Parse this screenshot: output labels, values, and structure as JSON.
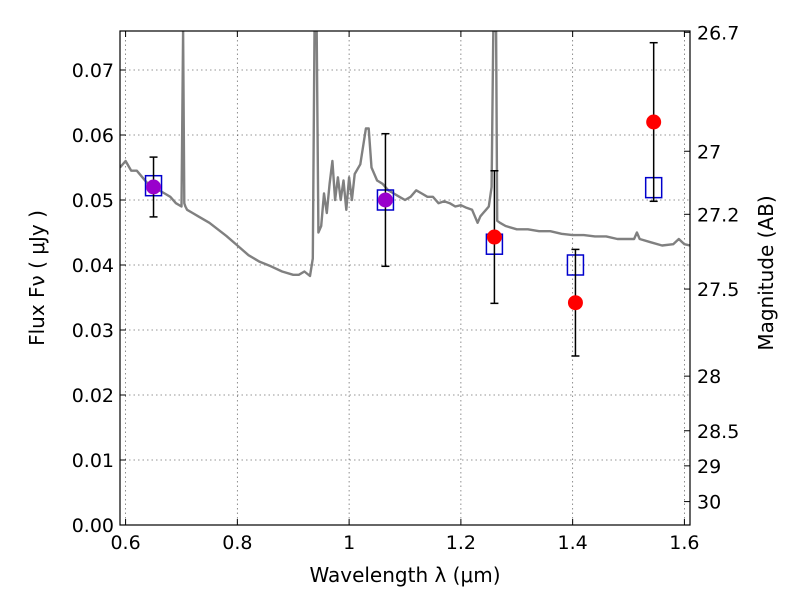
{
  "chart_data": {
    "type": "scatter",
    "title": "",
    "xlabel": "Wavelength  λ (μm)",
    "ylabel": "Flux  Fν  ( μJy )",
    "y2label": "Magnitude (AB)",
    "xlim": [
      0.59,
      1.61
    ],
    "ylim": [
      0.0,
      0.076
    ],
    "grid": true,
    "x_ticks": [
      {
        "value": 0.6,
        "label": "0.6"
      },
      {
        "value": 0.8,
        "label": "0.8"
      },
      {
        "value": 1.0,
        "label": "1"
      },
      {
        "value": 1.2,
        "label": "1.2"
      },
      {
        "value": 1.4,
        "label": "1.4"
      },
      {
        "value": 1.6,
        "label": "1.6"
      }
    ],
    "y_ticks": [
      {
        "value": 0.0,
        "label": "0.00"
      },
      {
        "value": 0.01,
        "label": "0.01"
      },
      {
        "value": 0.02,
        "label": "0.02"
      },
      {
        "value": 0.03,
        "label": "0.03"
      },
      {
        "value": 0.04,
        "label": "0.04"
      },
      {
        "value": 0.05,
        "label": "0.05"
      },
      {
        "value": 0.06,
        "label": "0.06"
      },
      {
        "value": 0.07,
        "label": "0.07"
      }
    ],
    "y2_ticks": [
      {
        "flux": 0.0758,
        "label": "26.7"
      },
      {
        "flux": 0.0575,
        "label": "27"
      },
      {
        "flux": 0.0478,
        "label": "27.2"
      },
      {
        "flux": 0.0363,
        "label": "27.5"
      },
      {
        "flux": 0.0229,
        "label": "28"
      },
      {
        "flux": 0.0145,
        "label": "28.5"
      },
      {
        "flux": 0.0091,
        "label": "29"
      },
      {
        "flux": 0.0036,
        "label": "30"
      }
    ],
    "series": [
      {
        "kind": "line",
        "color": "#808080",
        "x": [
          0.59,
          0.6,
          0.61,
          0.62,
          0.63,
          0.64,
          0.65,
          0.66,
          0.67,
          0.68,
          0.69,
          0.7,
          0.703,
          0.705,
          0.707,
          0.71,
          0.72,
          0.73,
          0.75,
          0.78,
          0.8,
          0.82,
          0.84,
          0.86,
          0.88,
          0.9,
          0.91,
          0.92,
          0.93,
          0.935,
          0.938,
          0.942,
          0.945,
          0.95,
          0.955,
          0.96,
          0.965,
          0.97,
          0.975,
          0.98,
          0.985,
          0.99,
          0.995,
          1.0,
          1.005,
          1.01,
          1.02,
          1.03,
          1.035,
          1.04,
          1.05,
          1.06,
          1.07,
          1.08,
          1.09,
          1.1,
          1.11,
          1.12,
          1.13,
          1.14,
          1.15,
          1.16,
          1.17,
          1.18,
          1.19,
          1.2,
          1.21,
          1.22,
          1.23,
          1.235,
          1.24,
          1.245,
          1.25,
          1.255,
          1.258,
          1.26,
          1.263,
          1.265,
          1.27,
          1.28,
          1.3,
          1.32,
          1.34,
          1.36,
          1.38,
          1.4,
          1.42,
          1.44,
          1.46,
          1.48,
          1.5,
          1.51,
          1.515,
          1.52,
          1.54,
          1.56,
          1.58,
          1.59,
          1.6,
          1.61
        ],
        "y": [
          0.055,
          0.056,
          0.0545,
          0.0545,
          0.0535,
          0.0525,
          0.052,
          0.0515,
          0.051,
          0.0505,
          0.0495,
          0.049,
          0.076,
          0.0495,
          0.049,
          0.0485,
          0.048,
          0.0475,
          0.0465,
          0.0445,
          0.043,
          0.0415,
          0.0405,
          0.0398,
          0.039,
          0.0385,
          0.0385,
          0.039,
          0.0383,
          0.041,
          0.076,
          0.076,
          0.045,
          0.046,
          0.051,
          0.048,
          0.0525,
          0.056,
          0.05,
          0.0535,
          0.05,
          0.053,
          0.0485,
          0.0535,
          0.05,
          0.054,
          0.0555,
          0.061,
          0.061,
          0.055,
          0.053,
          0.0525,
          0.0515,
          0.051,
          0.0505,
          0.05,
          0.0505,
          0.0515,
          0.051,
          0.0505,
          0.0505,
          0.0495,
          0.0498,
          0.0495,
          0.049,
          0.0492,
          0.0488,
          0.0485,
          0.0465,
          0.0475,
          0.048,
          0.0485,
          0.049,
          0.052,
          0.076,
          0.076,
          0.076,
          0.0468,
          0.0465,
          0.046,
          0.0455,
          0.0455,
          0.0452,
          0.0452,
          0.0448,
          0.0446,
          0.0446,
          0.0444,
          0.0444,
          0.044,
          0.044,
          0.044,
          0.045,
          0.044,
          0.0435,
          0.043,
          0.0432,
          0.044,
          0.0432,
          0.043
        ]
      },
      {
        "kind": "open-square",
        "color": "#0000cc",
        "x": [
          0.65,
          1.065,
          1.26,
          1.405,
          1.545
        ],
        "y": [
          0.0522,
          0.05,
          0.0432,
          0.04,
          0.0519
        ]
      },
      {
        "kind": "filled-circle",
        "color": "#ff0000",
        "x": [
          0.65,
          1.065,
          1.26,
          1.405,
          1.545
        ],
        "y": [
          0.052,
          0.05,
          0.0443,
          0.0342,
          0.062
        ],
        "err": [
          0.0046,
          0.0102,
          0.0102,
          0.0082,
          0.0122
        ]
      }
    ],
    "colors": {
      "errorbar": "#000000",
      "overlap": "#9900cc"
    }
  }
}
